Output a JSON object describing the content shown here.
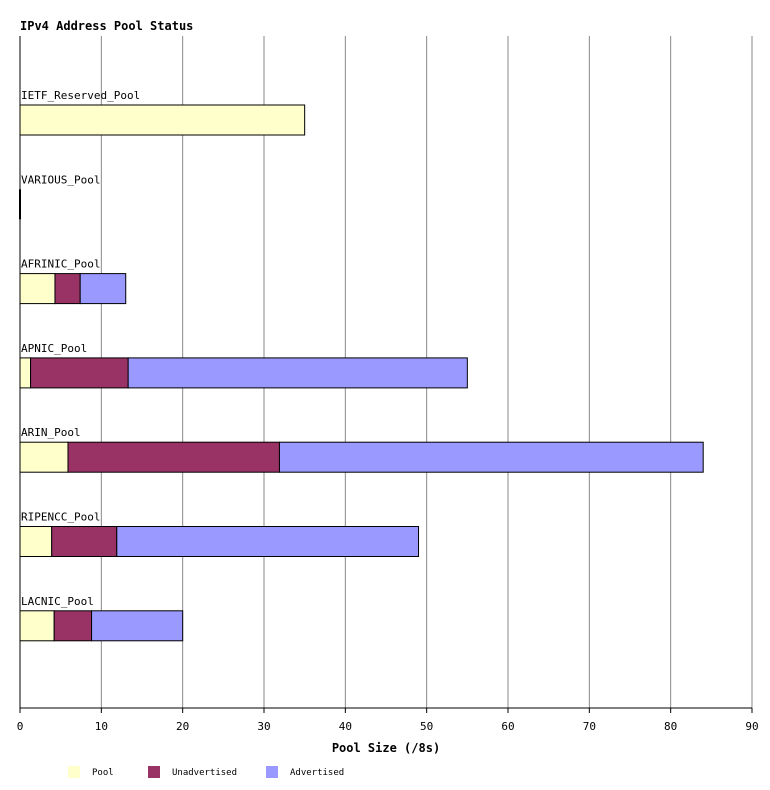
{
  "chart_data": {
    "type": "bar",
    "orientation": "horizontal",
    "stacked": true,
    "title": "IPv4 Address Pool Status",
    "xlabel": "Pool Size (/8s)",
    "ylabel": "",
    "xlim": [
      0,
      90
    ],
    "xticks": [
      0,
      10,
      20,
      30,
      40,
      50,
      60,
      70,
      80,
      90
    ],
    "grid": true,
    "legend_position": "bottom-left",
    "categories": [
      "IETF_Reserved_Pool",
      "VARIOUS_Pool",
      "AFRINIC_Pool",
      "APNIC_Pool",
      "ARIN_Pool",
      "RIPENCC_Pool",
      "LACNIC_Pool"
    ],
    "series": [
      {
        "name": "Pool",
        "color": "#ffffcc",
        "values": [
          35,
          0,
          4.3,
          1.3,
          5.9,
          3.9,
          4.2
        ]
      },
      {
        "name": "Unadvertised",
        "color": "#993366",
        "values": [
          0,
          0,
          3.1,
          12,
          26,
          8,
          4.6
        ]
      },
      {
        "name": "Advertised",
        "color": "#9999ff",
        "values": [
          0,
          0,
          5.6,
          41.7,
          52.1,
          37.1,
          11.2
        ]
      }
    ]
  }
}
